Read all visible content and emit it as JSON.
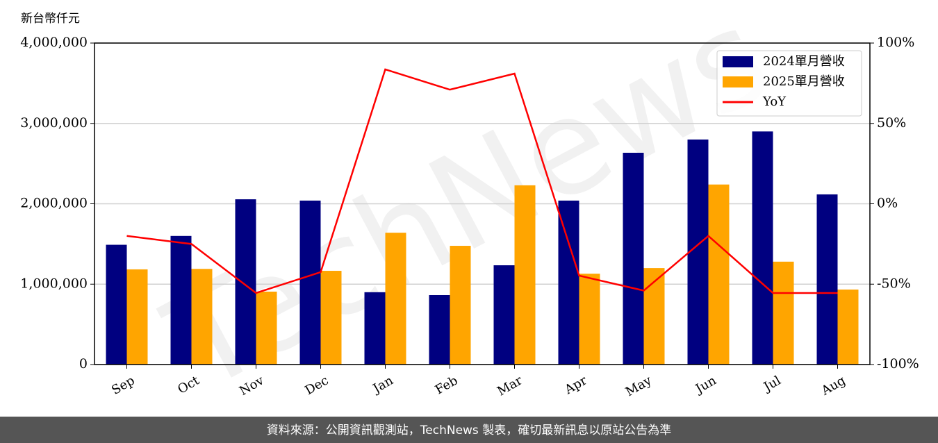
{
  "chart_data": {
    "type": "bar_line",
    "y_label": "新台幣仟元",
    "watermark": "TechNews",
    "footer": "資料來源：公開資訊觀測站，TechNews 製表，確切最新訊息以原站公告為準",
    "categories": [
      "Sep",
      "Oct",
      "Nov",
      "Dec",
      "Jan",
      "Feb",
      "Mar",
      "Apr",
      "May",
      "Jun",
      "Jul",
      "Aug"
    ],
    "series": [
      {
        "name": "2024單月營收",
        "type": "bar",
        "color": "#000080",
        "values": [
          1490000,
          1600000,
          2056000,
          2040000,
          900000,
          864000,
          1235000,
          2040000,
          2635000,
          2800000,
          2900000,
          2117000
        ]
      },
      {
        "name": "2025單月營收",
        "type": "bar",
        "color": "#ffa500",
        "values": [
          1184000,
          1190000,
          907000,
          1166000,
          1640000,
          1477000,
          2230000,
          1130000,
          1200000,
          2240000,
          1280000,
          933000
        ]
      },
      {
        "name": "YoY",
        "type": "line",
        "axis": "y2",
        "color": "#ff0000",
        "values": [
          -20,
          -25,
          -55.5,
          -42.5,
          83.6,
          71,
          81,
          -44.7,
          -54,
          -20,
          -55.5,
          -55.5
        ]
      }
    ],
    "ylim": [
      0,
      4000000
    ],
    "yticks": [
      0,
      {
        "value": 1000000,
        "label": "1,000,000"
      },
      {
        "value": 2000000,
        "label": "2,000,000"
      },
      {
        "value": 3000000,
        "label": "3,000,000"
      },
      {
        "value": 4000000,
        "label": "4,000,000"
      }
    ],
    "y2lim": [
      -100,
      100
    ],
    "y2ticks": [
      {
        "value": -100,
        "label": "-100%"
      },
      {
        "value": -50,
        "label": "-50%"
      },
      {
        "value": 0,
        "label": "0%"
      },
      {
        "value": 50,
        "label": "50%"
      },
      {
        "value": 100,
        "label": "100%"
      }
    ],
    "grid": true,
    "legend": "upper right"
  }
}
